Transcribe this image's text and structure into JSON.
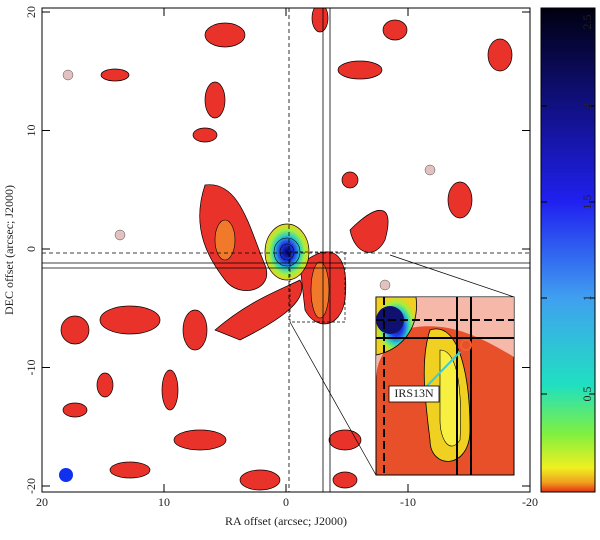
{
  "chart_data": {
    "type": "contour-map",
    "xlabel": "RA offset (arcsec; J2000)",
    "ylabel": "DEC offset (arcsec; J2000)",
    "xlim": [
      20,
      -20
    ],
    "xticks": [
      20,
      10,
      0,
      -10,
      -20
    ],
    "ylim": [
      -20,
      20
    ],
    "yticks": [
      -20,
      -10,
      0,
      10,
      20
    ],
    "colorbar": {
      "lim": [
        0,
        2.5
      ],
      "ticks": [
        0.5,
        1,
        1.5,
        2,
        2.5
      ]
    },
    "annotation": "IRS13N"
  }
}
